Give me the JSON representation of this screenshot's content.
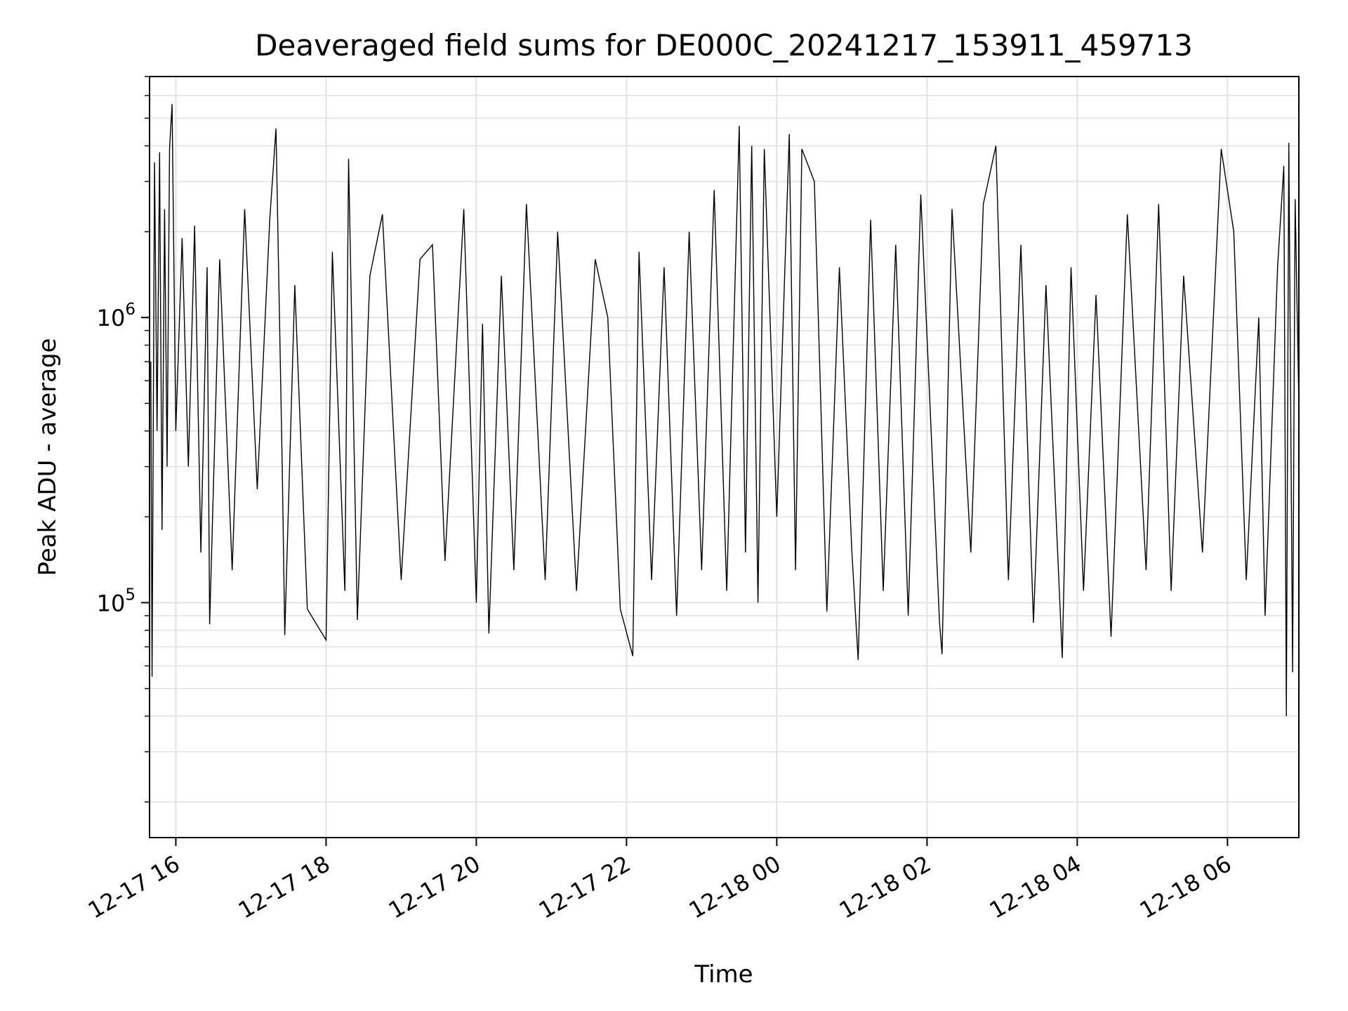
{
  "chart_data": {
    "type": "line",
    "title": "Deaveraged field sums for DE000C_20241217_153911_459713",
    "xlabel": "Time",
    "ylabel": "Peak ADU - average",
    "yscale": "log",
    "ylim": [
      15000,
      7000000
    ],
    "xlim": [
      "2024-12-17 15:39",
      "2024-12-18 06:57"
    ],
    "grid": true,
    "x_ticks": [
      {
        "value": "2024-12-17 16:00",
        "label": "12-17 16"
      },
      {
        "value": "2024-12-17 18:00",
        "label": "12-17 18"
      },
      {
        "value": "2024-12-17 20:00",
        "label": "12-17 20"
      },
      {
        "value": "2024-12-17 22:00",
        "label": "12-17 22"
      },
      {
        "value": "2024-12-18 00:00",
        "label": "12-18 00"
      },
      {
        "value": "2024-12-18 02:00",
        "label": "12-18 02"
      },
      {
        "value": "2024-12-18 04:00",
        "label": "12-18 04"
      },
      {
        "value": "2024-12-18 06:00",
        "label": "12-18 06"
      }
    ],
    "y_ticks": [
      {
        "value": 100000,
        "base": "10",
        "exp": "5"
      },
      {
        "value": 1000000,
        "base": "10",
        "exp": "6"
      }
    ],
    "series": [
      {
        "color": "#000000",
        "points": [
          [
            "2024-12-17 15:40",
            700000
          ],
          [
            "2024-12-17 15:41",
            55000
          ],
          [
            "2024-12-17 15:43",
            3500000
          ],
          [
            "2024-12-17 15:45",
            400000
          ],
          [
            "2024-12-17 15:47",
            3800000
          ],
          [
            "2024-12-17 15:49",
            180000
          ],
          [
            "2024-12-17 15:51",
            2400000
          ],
          [
            "2024-12-17 15:53",
            300000
          ],
          [
            "2024-12-17 15:55",
            3900000
          ],
          [
            "2024-12-17 15:57",
            5600000
          ],
          [
            "2024-12-17 16:00",
            400000
          ],
          [
            "2024-12-17 16:05",
            1900000
          ],
          [
            "2024-12-17 16:10",
            300000
          ],
          [
            "2024-12-17 16:15",
            2100000
          ],
          [
            "2024-12-17 16:20",
            150000
          ],
          [
            "2024-12-17 16:25",
            1500000
          ],
          [
            "2024-12-17 16:27",
            84000
          ],
          [
            "2024-12-17 16:35",
            1600000
          ],
          [
            "2024-12-17 16:45",
            130000
          ],
          [
            "2024-12-17 16:55",
            2400000
          ],
          [
            "2024-12-17 17:05",
            250000
          ],
          [
            "2024-12-17 17:15",
            2200000
          ],
          [
            "2024-12-17 17:20",
            4600000
          ],
          [
            "2024-12-17 17:25",
            300000
          ],
          [
            "2024-12-17 17:27",
            77000
          ],
          [
            "2024-12-17 17:35",
            1300000
          ],
          [
            "2024-12-17 17:45",
            95000
          ],
          [
            "2024-12-17 18:00",
            74000
          ],
          [
            "2024-12-17 18:05",
            1700000
          ],
          [
            "2024-12-17 18:15",
            110000
          ],
          [
            "2024-12-17 18:18",
            3600000
          ],
          [
            "2024-12-17 18:25",
            87000
          ],
          [
            "2024-12-17 18:35",
            1400000
          ],
          [
            "2024-12-17 18:45",
            2300000
          ],
          [
            "2024-12-17 19:00",
            120000
          ],
          [
            "2024-12-17 19:15",
            1600000
          ],
          [
            "2024-12-17 19:25",
            1800000
          ],
          [
            "2024-12-17 19:35",
            140000
          ],
          [
            "2024-12-17 19:50",
            2400000
          ],
          [
            "2024-12-17 20:00",
            100000
          ],
          [
            "2024-12-17 20:05",
            950000
          ],
          [
            "2024-12-17 20:10",
            78000
          ],
          [
            "2024-12-17 20:20",
            1400000
          ],
          [
            "2024-12-17 20:30",
            130000
          ],
          [
            "2024-12-17 20:40",
            2500000
          ],
          [
            "2024-12-17 20:55",
            120000
          ],
          [
            "2024-12-17 21:05",
            2000000
          ],
          [
            "2024-12-17 21:20",
            110000
          ],
          [
            "2024-12-17 21:35",
            1600000
          ],
          [
            "2024-12-17 21:45",
            1000000
          ],
          [
            "2024-12-17 21:55",
            95000
          ],
          [
            "2024-12-17 22:05",
            65000
          ],
          [
            "2024-12-17 22:10",
            1700000
          ],
          [
            "2024-12-17 22:20",
            120000
          ],
          [
            "2024-12-17 22:30",
            1500000
          ],
          [
            "2024-12-17 22:40",
            90000
          ],
          [
            "2024-12-17 22:50",
            2000000
          ],
          [
            "2024-12-17 23:00",
            130000
          ],
          [
            "2024-12-17 23:10",
            2800000
          ],
          [
            "2024-12-17 23:20",
            110000
          ],
          [
            "2024-12-17 23:30",
            4700000
          ],
          [
            "2024-12-17 23:35",
            150000
          ],
          [
            "2024-12-17 23:40",
            4000000
          ],
          [
            "2024-12-17 23:45",
            100000
          ],
          [
            "2024-12-17 23:50",
            3900000
          ],
          [
            "2024-12-18 00:00",
            200000
          ],
          [
            "2024-12-18 00:10",
            4400000
          ],
          [
            "2024-12-18 00:15",
            130000
          ],
          [
            "2024-12-18 00:20",
            3900000
          ],
          [
            "2024-12-18 00:30",
            3000000
          ],
          [
            "2024-12-18 00:40",
            93000
          ],
          [
            "2024-12-18 00:50",
            1500000
          ],
          [
            "2024-12-18 01:00",
            150000
          ],
          [
            "2024-12-18 01:05",
            63000
          ],
          [
            "2024-12-18 01:15",
            2200000
          ],
          [
            "2024-12-18 01:25",
            110000
          ],
          [
            "2024-12-18 01:35",
            1800000
          ],
          [
            "2024-12-18 01:45",
            90000
          ],
          [
            "2024-12-18 01:55",
            2700000
          ],
          [
            "2024-12-18 02:10",
            85000
          ],
          [
            "2024-12-18 02:12",
            66000
          ],
          [
            "2024-12-18 02:20",
            2400000
          ],
          [
            "2024-12-18 02:35",
            150000
          ],
          [
            "2024-12-18 02:45",
            2500000
          ],
          [
            "2024-12-18 02:55",
            4000000
          ],
          [
            "2024-12-18 03:05",
            120000
          ],
          [
            "2024-12-18 03:15",
            1800000
          ],
          [
            "2024-12-18 03:25",
            85000
          ],
          [
            "2024-12-18 03:35",
            1300000
          ],
          [
            "2024-12-18 03:48",
            64000
          ],
          [
            "2024-12-18 03:55",
            1500000
          ],
          [
            "2024-12-18 04:05",
            110000
          ],
          [
            "2024-12-18 04:15",
            1200000
          ],
          [
            "2024-12-18 04:27",
            76000
          ],
          [
            "2024-12-18 04:40",
            2300000
          ],
          [
            "2024-12-18 04:55",
            130000
          ],
          [
            "2024-12-18 05:05",
            2500000
          ],
          [
            "2024-12-18 05:15",
            110000
          ],
          [
            "2024-12-18 05:25",
            1400000
          ],
          [
            "2024-12-18 05:40",
            150000
          ],
          [
            "2024-12-18 05:55",
            3900000
          ],
          [
            "2024-12-18 06:05",
            2000000
          ],
          [
            "2024-12-18 06:15",
            120000
          ],
          [
            "2024-12-18 06:25",
            1000000
          ],
          [
            "2024-12-18 06:30",
            90000
          ],
          [
            "2024-12-18 06:40",
            1500000
          ],
          [
            "2024-12-18 06:45",
            3400000
          ],
          [
            "2024-12-18 06:47",
            40000
          ],
          [
            "2024-12-18 06:49",
            4100000
          ],
          [
            "2024-12-18 06:52",
            57000
          ],
          [
            "2024-12-18 06:54",
            2600000
          ],
          [
            "2024-12-18 06:57",
            500000
          ]
        ]
      }
    ]
  }
}
